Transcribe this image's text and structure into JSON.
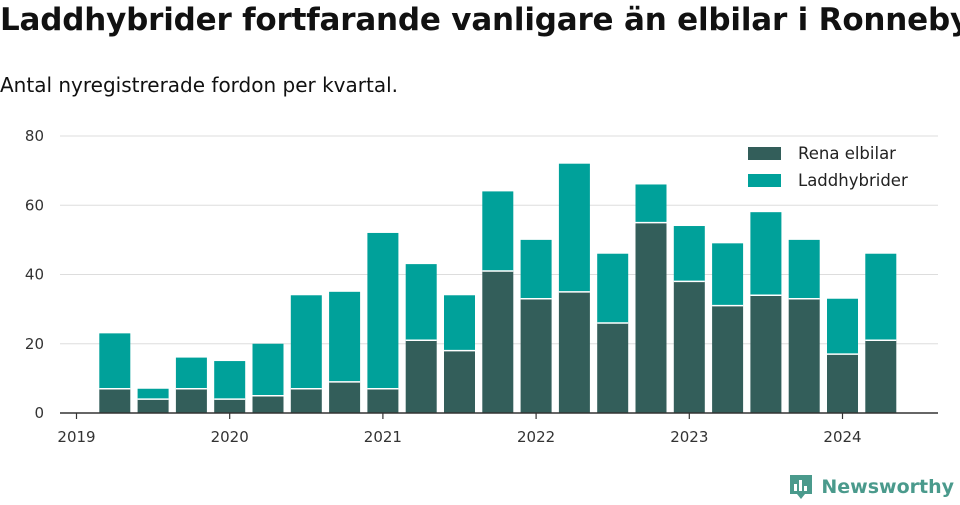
{
  "title": "Laddhybrider fortfarande vanligare än elbilar i Ronneby",
  "subtitle": "Antal nyregistrerade fordon per kvartal.",
  "brand": {
    "name": "Newsworthy",
    "icon": "newsworthy-logo-icon"
  },
  "colors": {
    "elbilar": "#335e5a",
    "laddhybrider": "#00a19a",
    "grid": "#dddddd",
    "axis": "#333333"
  },
  "chart_data": {
    "type": "bar",
    "stacked": true,
    "title": "Laddhybrider fortfarande vanligare än elbilar i Ronneby",
    "subtitle": "Antal nyregistrerade fordon per kvartal.",
    "xlabel": "",
    "ylabel": "",
    "x_tick_labels": [
      "2019",
      "2020",
      "2021",
      "2022",
      "2023",
      "2024"
    ],
    "y_ticks": [
      0,
      20,
      40,
      60,
      80
    ],
    "ylim": [
      0,
      80
    ],
    "grid": true,
    "legend_position": "top-right",
    "categories": [
      "2019-Q2",
      "2019-Q3",
      "2019-Q4",
      "2020-Q1",
      "2020-Q2",
      "2020-Q3",
      "2020-Q4",
      "2021-Q1",
      "2021-Q2",
      "2021-Q3",
      "2021-Q4",
      "2022-Q1",
      "2022-Q2",
      "2022-Q3",
      "2022-Q4",
      "2023-Q1",
      "2023-Q2",
      "2023-Q3",
      "2023-Q4",
      "2024-Q1",
      "2024-Q2"
    ],
    "series": [
      {
        "name": "Rena elbilar",
        "color": "#335e5a",
        "values": [
          7,
          4,
          7,
          4,
          5,
          7,
          9,
          7,
          21,
          18,
          41,
          33,
          35,
          26,
          55,
          38,
          31,
          34,
          33,
          17,
          21
        ]
      },
      {
        "name": "Laddhybrider",
        "color": "#00a19a",
        "values": [
          16,
          3,
          9,
          11,
          15,
          27,
          26,
          45,
          22,
          16,
          23,
          17,
          37,
          20,
          11,
          16,
          18,
          24,
          17,
          16,
          25
        ]
      }
    ]
  }
}
